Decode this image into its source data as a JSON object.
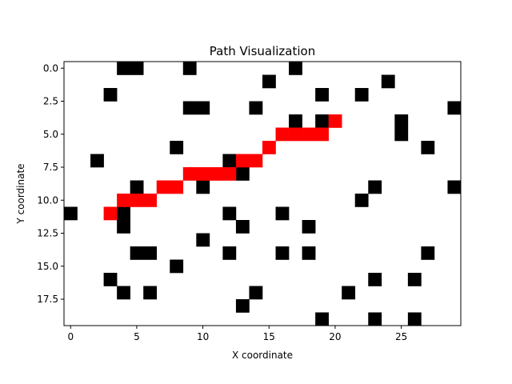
{
  "chart_data": {
    "type": "heatmap",
    "title": "Path Visualization",
    "xlabel": "X coordinate",
    "ylabel": "Y coordinate",
    "x_ticks": [
      0,
      5,
      10,
      15,
      20,
      25
    ],
    "x_tick_labels": [
      "0",
      "5",
      "10",
      "15",
      "20",
      "25"
    ],
    "y_ticks": [
      0,
      2.5,
      5,
      7.5,
      10,
      12.5,
      15,
      17.5
    ],
    "y_tick_labels": [
      "0.0",
      "2.5",
      "5.0",
      "7.5",
      "10.0",
      "12.5",
      "15.0",
      "17.5"
    ],
    "xlim": [
      -0.5,
      29.5
    ],
    "ylim": [
      19.5,
      -0.5
    ],
    "grid": false,
    "colors": {
      "empty": "#ffffff",
      "obstacle": "#000000",
      "path": "#ff0000"
    },
    "cell_values": {
      "empty": 0,
      "obstacle": 1,
      "path": 2
    },
    "obstacles": [
      [
        4,
        0
      ],
      [
        5,
        0
      ],
      [
        9,
        0
      ],
      [
        17,
        0
      ],
      [
        15,
        1
      ],
      [
        24,
        1
      ],
      [
        3,
        2
      ],
      [
        19,
        2
      ],
      [
        22,
        2
      ],
      [
        9,
        3
      ],
      [
        10,
        3
      ],
      [
        14,
        3
      ],
      [
        29,
        3
      ],
      [
        17,
        4
      ],
      [
        19,
        4
      ],
      [
        25,
        4
      ],
      [
        25,
        5
      ],
      [
        8,
        6
      ],
      [
        27,
        6
      ],
      [
        2,
        7
      ],
      [
        12,
        7
      ],
      [
        13,
        8
      ],
      [
        5,
        9
      ],
      [
        10,
        9
      ],
      [
        23,
        9
      ],
      [
        29,
        9
      ],
      [
        22,
        10
      ],
      [
        0,
        11
      ],
      [
        4,
        11
      ],
      [
        12,
        11
      ],
      [
        16,
        11
      ],
      [
        4,
        12
      ],
      [
        13,
        12
      ],
      [
        18,
        12
      ],
      [
        10,
        13
      ],
      [
        5,
        14
      ],
      [
        6,
        14
      ],
      [
        12,
        14
      ],
      [
        16,
        14
      ],
      [
        18,
        14
      ],
      [
        27,
        14
      ],
      [
        8,
        15
      ],
      [
        3,
        16
      ],
      [
        23,
        16
      ],
      [
        26,
        16
      ],
      [
        4,
        17
      ],
      [
        6,
        17
      ],
      [
        14,
        17
      ],
      [
        21,
        17
      ],
      [
        13,
        18
      ],
      [
        19,
        19
      ],
      [
        23,
        19
      ],
      [
        26,
        19
      ]
    ],
    "path": [
      [
        3,
        11
      ],
      [
        4,
        10
      ],
      [
        5,
        10
      ],
      [
        6,
        10
      ],
      [
        7,
        9
      ],
      [
        8,
        9
      ],
      [
        9,
        8
      ],
      [
        10,
        8
      ],
      [
        11,
        8
      ],
      [
        12,
        8
      ],
      [
        13,
        7
      ],
      [
        14,
        7
      ],
      [
        15,
        6
      ],
      [
        16,
        5
      ],
      [
        17,
        5
      ],
      [
        18,
        5
      ],
      [
        19,
        5
      ],
      [
        20,
        4
      ]
    ]
  }
}
